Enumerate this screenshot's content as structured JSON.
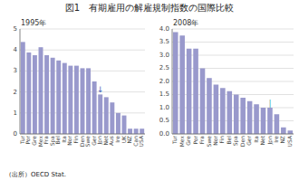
{
  "title": "図1　有期雇用の解雇規制指数の国際比較",
  "note": "（出所）OECD Stat.",
  "chart_data": [
    {
      "type": "bar",
      "subtitle": "1995年",
      "categories": [
        "Tur",
        "Por",
        "Gre",
        "Mex",
        "Fra",
        "Spa",
        "Bel",
        "Ita",
        "Nor",
        "Fin",
        "Den",
        "Swe",
        "Ger",
        "Jpn",
        "Net",
        "Aus",
        "Ire",
        "UK",
        "NZ",
        "Can",
        "USA"
      ],
      "values": [
        4.38,
        3.88,
        3.75,
        4.13,
        3.75,
        3.63,
        3.5,
        3.38,
        3.25,
        3.25,
        3.13,
        3.13,
        2.5,
        1.88,
        1.75,
        1.5,
        1.0,
        0.88,
        0.25,
        0.25,
        0.25
      ],
      "color": "#9999cc",
      "ylim": [
        0,
        5
      ],
      "yticks": [
        0,
        1,
        2,
        3,
        4,
        5
      ],
      "grid": true,
      "annotations": [
        {
          "text": "↓",
          "category": "Jpn",
          "color": "#4466bb"
        }
      ]
    },
    {
      "type": "bar",
      "subtitle": "2008年",
      "categories": [
        "Tur",
        "Mex",
        "Gre",
        "Por",
        "Fra",
        "Swe",
        "Nor",
        "Fin",
        "Bel",
        "Spa",
        "Den",
        "Ger",
        "Ita",
        "Net",
        "Jpn",
        "Ire",
        "NZ",
        "USA"
      ],
      "values": [
        3.88,
        3.75,
        3.25,
        3.25,
        2.5,
        2.13,
        1.88,
        1.75,
        1.63,
        1.5,
        1.38,
        1.25,
        1.13,
        1.0,
        1.0,
        0.75,
        0.25,
        0.13
      ],
      "color": "#9999cc",
      "ylim": [
        0,
        4
      ],
      "yticks": [
        {
          "value": 0,
          "label": "0.0"
        },
        0.5,
        {
          "value": 1,
          "label": "1.0"
        },
        1.5,
        {
          "value": 2,
          "label": "2.0"
        },
        2.5,
        {
          "value": 3,
          "label": "3.0"
        },
        3.5,
        {
          "value": 4,
          "label": "4.0"
        }
      ],
      "grid": true,
      "annotations": [
        {
          "text": "|",
          "category": "Jpn",
          "color": "#44aaaa"
        }
      ]
    }
  ]
}
